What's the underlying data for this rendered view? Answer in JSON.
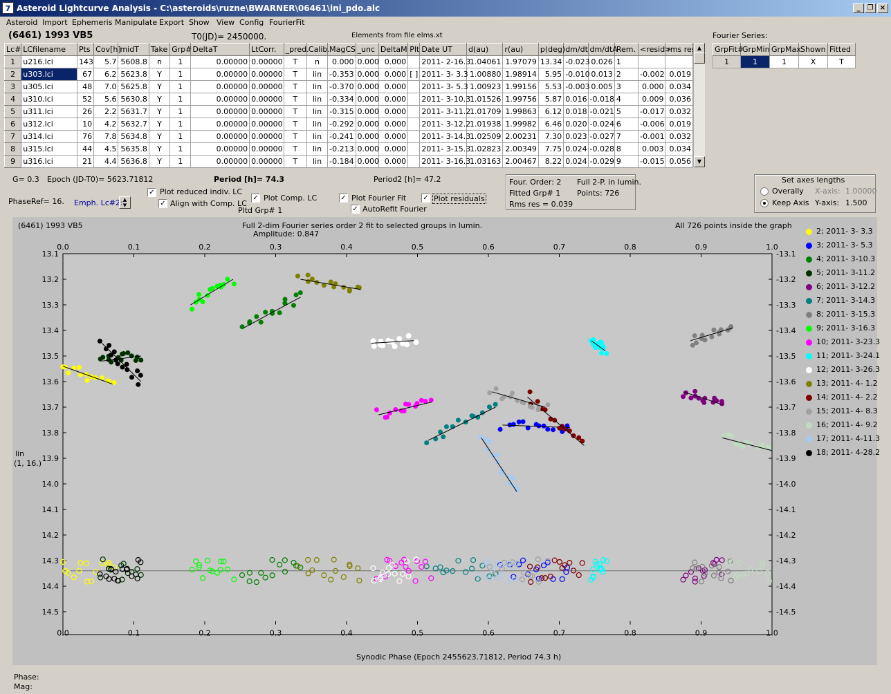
{
  "window": {
    "title": "Asteroid Lightcurve Analysis - C:\\asteroids\\ruzne\\BWARNER\\06461\\ini_pdo.alc",
    "icon": "app-icon"
  },
  "menu": [
    "Asteroid",
    "Import",
    "Ephemeris",
    "Manipulate",
    "Export",
    "Show",
    "View",
    "Config",
    "FourierFit"
  ],
  "header": {
    "object": "(6461) 1993 VB5",
    "t0": "T0(JD)= 2450000.",
    "elements": "Elements from file elms.xt"
  },
  "table": {
    "columns": [
      "Lc#",
      "LCfilename",
      "Pts",
      "Cov[h]",
      "midT",
      "Take",
      "Grp#",
      "DeltaT",
      "LtCorr.",
      "_pred.",
      "Calib.",
      "MagCS",
      "_unc",
      "DeltaM",
      "Plt",
      "Date UT",
      "d(au)",
      "r(au)",
      "p(deg)",
      "dm/dt",
      "dm/dtA",
      "Rem.",
      "<resid>",
      "rms res"
    ],
    "rows": [
      [
        "1",
        "u216.lci",
        "143",
        "5.7",
        "5608.8",
        "n",
        "1",
        "0.00000",
        "0.00000",
        "T",
        "n",
        "0.000",
        "0.000",
        "0.000",
        "",
        "2011- 2-16.3",
        "1.04061",
        "1.97079",
        "13.34",
        "-0.023",
        "0.026",
        "1",
        "",
        ""
      ],
      [
        "2",
        "u303.lci",
        "67",
        "6.2",
        "5623.8",
        "Y",
        "1",
        "0.00000",
        "0.00000",
        "T",
        "lin",
        "-0.353",
        "0.000",
        "0.000",
        "[ ]",
        "2011- 3- 3.3",
        "1.00880",
        "1.98914",
        "5.95",
        "-0.010",
        "0.013",
        "2",
        "-0.002",
        "0.019"
      ],
      [
        "3",
        "u305.lci",
        "48",
        "7.0",
        "5625.8",
        "Y",
        "1",
        "0.00000",
        "0.00000",
        "T",
        "lin",
        "-0.370",
        "0.000",
        "0.000",
        "",
        "2011- 3- 5.3",
        "1.00923",
        "1.99156",
        "5.53",
        "-0.003",
        "0.005",
        "3",
        "0.000",
        "0.034"
      ],
      [
        "4",
        "u310.lci",
        "52",
        "5.6",
        "5630.8",
        "Y",
        "1",
        "0.00000",
        "0.00000",
        "T",
        "lin",
        "-0.334",
        "0.000",
        "0.000",
        "",
        "2011- 3-10.3",
        "1.01526",
        "1.99756",
        "5.87",
        "0.016",
        "-0.018",
        "4",
        "0.009",
        "0.036"
      ],
      [
        "5",
        "u311.lci",
        "26",
        "2.2",
        "5631.7",
        "Y",
        "1",
        "0.00000",
        "0.00000",
        "T",
        "lin",
        "-0.315",
        "0.000",
        "0.000",
        "",
        "2011- 3-11.2",
        "1.01709",
        "1.99863",
        "6.12",
        "0.018",
        "-0.021",
        "5",
        "-0.017",
        "0.032"
      ],
      [
        "6",
        "u312.lci",
        "10",
        "4.2",
        "5632.7",
        "Y",
        "1",
        "0.00000",
        "0.00000",
        "T",
        "lin",
        "-0.292",
        "0.000",
        "0.000",
        "",
        "2011- 3-12.2",
        "1.01938",
        "1.99982",
        "6.46",
        "0.020",
        "-0.024",
        "6",
        "-0.006",
        "0.019"
      ],
      [
        "7",
        "u314.lci",
        "76",
        "7.8",
        "5634.8",
        "Y",
        "1",
        "0.00000",
        "0.00000",
        "T",
        "lin",
        "-0.241",
        "0.000",
        "0.000",
        "",
        "2011- 3-14.3",
        "1.02509",
        "2.00231",
        "7.30",
        "0.023",
        "-0.027",
        "7",
        "-0.001",
        "0.032"
      ],
      [
        "8",
        "u315.lci",
        "44",
        "4.5",
        "5635.8",
        "Y",
        "1",
        "0.00000",
        "0.00000",
        "T",
        "lin",
        "-0.213",
        "0.000",
        "0.000",
        "",
        "2011- 3-15.3",
        "1.02823",
        "2.00349",
        "7.75",
        "0.024",
        "-0.028",
        "8",
        "0.003",
        "0.034"
      ],
      [
        "9",
        "u316.lci",
        "21",
        "4.4",
        "5636.8",
        "Y",
        "1",
        "0.00000",
        "0.00000",
        "T",
        "lin",
        "-0.184",
        "0.000",
        "0.000",
        "",
        "2011- 3-16.3",
        "1.03163",
        "2.00467",
        "8.22",
        "0.024",
        "-0.029",
        "9",
        "-0.015",
        "0.056"
      ]
    ]
  },
  "fourier_table": {
    "title": "Fourier Series:",
    "columns": [
      "GrpFit#",
      "GrpMin",
      "GrpMax",
      "Shown",
      "Fitted"
    ],
    "row": [
      "1",
      "1",
      "1",
      "X",
      "T"
    ]
  },
  "controls": {
    "g": "G= 0.3",
    "epoch": "Epoch (JD-T0)= 5623.71812",
    "period": "Period [h]= 74.3",
    "period2": "Period2 [h]= 47.2",
    "phaseref": "PhaseRef= 16.",
    "emph": "Emph. Lc#2:",
    "cb_reduced": "Plot reduced indiv. LC",
    "cb_align": "Align with Comp. LC",
    "cb_comp": "Plot Comp. LC",
    "pltd": "Pltd Grp#  1",
    "cb_fourier": "Plot Fourier Fit",
    "cb_autorefit": "AutoRefit Fourier",
    "cb_resid": "Plot residuals",
    "info1": "Four. Order:  2",
    "info2": "Full 2-P. in lumin.",
    "info3": "Fitted Grp# 1",
    "info4": "Points: 726",
    "info5": "Rms res     = 0.039",
    "axes_title": "Set axes lengths",
    "rad_overall": "Overally",
    "rad_keep": "Keep Axis",
    "xaxis_lbl": "X-axis:",
    "xaxis_val": "1.00000",
    "yaxis_lbl": "Y-axis:",
    "yaxis_val": "1.500"
  },
  "plot": {
    "object": "(6461) 1993 VB5",
    "title1": "Full 2-dim Fourier series order 2 fit to selected groups in lumin.",
    "title2": "Amplitude: 0.847",
    "inside": "All 726 points inside the graph",
    "ylabel1": "lin",
    "ylabel2": "(1, 16.)",
    "xlabel": "Synodic Phase (Epoch 2455623.71812, Period 74.3 h)"
  },
  "status": {
    "phase": "Phase:",
    "mag": "Mag:"
  },
  "chart_data": {
    "type": "scatter",
    "xlim": [
      0,
      1
    ],
    "ylim": [
      13.1,
      14.55
    ],
    "y_inverted": true,
    "xticks": [
      "0.0",
      "0.1",
      "0.2",
      "0.3",
      "0.4",
      "0.5",
      "0.6",
      "0.7",
      "0.8",
      "0.9",
      "1.0"
    ],
    "yticks": [
      "13.1",
      "13.2",
      "13.3",
      "13.4",
      "13.5",
      "13.6",
      "13.7",
      "13.8",
      "13.9",
      "14.0",
      "14.1",
      "14.2",
      "14.3",
      "14.4",
      "14.5"
    ],
    "residual_baseline": 14.34,
    "series": [
      {
        "name": "2; 2011- 3- 3.3",
        "color": "#ffff00",
        "x": [
          0.0,
          0.07
        ],
        "y": [
          13.54,
          13.61
        ]
      },
      {
        "name": "3; 2011- 3- 5.3",
        "color": "#0000ff",
        "x": [
          0.62,
          0.715
        ],
        "y": [
          13.77,
          13.78
        ]
      },
      {
        "name": "4; 2011- 3-10.3",
        "color": "#008000",
        "x": [
          0.255,
          0.335
        ],
        "y": [
          13.39,
          13.27
        ]
      },
      {
        "name": "5; 2011- 3-11.2",
        "color": "#003000",
        "x": [
          0.055,
          0.11
        ],
        "y": [
          13.52,
          13.5
        ]
      },
      {
        "name": "6; 2011- 3-12.2",
        "color": "#800080",
        "x": [
          0.875,
          0.93
        ],
        "y": [
          13.64,
          13.69
        ]
      },
      {
        "name": "7; 2011- 3-14.3",
        "color": "#008080",
        "x": [
          0.515,
          0.61
        ],
        "y": [
          13.83,
          13.7
        ]
      },
      {
        "name": "8; 2011- 3-15.3",
        "color": "#808080",
        "x": [
          0.885,
          0.945
        ],
        "y": [
          13.44,
          13.39
        ]
      },
      {
        "name": "9; 2011- 3-16.3",
        "color": "#00ff00",
        "x": [
          0.18,
          0.24
        ],
        "y": [
          13.3,
          13.2
        ]
      },
      {
        "name": "10; 2011- 3-23.3",
        "color": "#ff00ff",
        "x": [
          0.445,
          0.52
        ],
        "y": [
          13.73,
          13.68
        ]
      },
      {
        "name": "11; 2011- 3-24.1",
        "color": "#00ffff",
        "x": [
          0.745,
          0.765
        ],
        "y": [
          13.44,
          13.48
        ]
      },
      {
        "name": "12; 2011- 3-26.3",
        "color": "#ffffff",
        "x": [
          0.435,
          0.495
        ],
        "y": [
          13.45,
          13.44
        ]
      },
      {
        "name": "13; 2011- 4- 1.2",
        "color": "#808000",
        "x": [
          0.335,
          0.42
        ],
        "y": [
          13.2,
          13.24
        ]
      },
      {
        "name": "14; 2011- 4- 2.2",
        "color": "#800000",
        "x": [
          0.655,
          0.735
        ],
        "y": [
          13.66,
          13.85
        ]
      },
      {
        "name": "15; 2011- 4- 8.3",
        "color": "#a0a0a0",
        "x": [
          0.605,
          0.68
        ],
        "y": [
          13.64,
          13.7
        ]
      },
      {
        "name": "16; 2011- 4- 9.2",
        "color": "#c0dcc0",
        "x": [
          0.93,
          1.0
        ],
        "y": [
          13.82,
          13.87
        ]
      },
      {
        "name": "17; 2011- 4-11.3",
        "color": "#a6caf0",
        "x": [
          0.59,
          0.64
        ],
        "y": [
          13.82,
          14.03
        ]
      },
      {
        "name": "18; 2011- 4-28.2",
        "color": "#000000",
        "x": [
          0.055,
          0.11
        ],
        "y": [
          13.45,
          13.6
        ]
      }
    ]
  }
}
